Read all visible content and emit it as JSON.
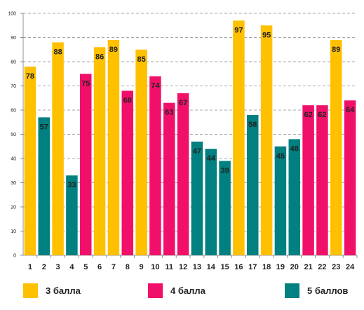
{
  "chart_data": {
    "type": "bar",
    "categories": [
      "1",
      "2",
      "3",
      "4",
      "5",
      "6",
      "7",
      "8",
      "9",
      "10",
      "11",
      "12",
      "13",
      "14",
      "15",
      "16",
      "17",
      "18",
      "19",
      "20",
      "21",
      "22",
      "23",
      "24"
    ],
    "values": [
      78,
      57,
      88,
      33,
      75,
      86,
      89,
      68,
      85,
      74,
      63,
      67,
      47,
      44,
      39,
      97,
      58,
      95,
      45,
      48,
      62,
      62,
      89,
      64
    ],
    "groups": [
      "3",
      "5",
      "3",
      "5",
      "4",
      "3",
      "3",
      "4",
      "3",
      "4",
      "4",
      "4",
      "5",
      "5",
      "5",
      "3",
      "5",
      "3",
      "5",
      "5",
      "4",
      "4",
      "3",
      "4"
    ],
    "legend": [
      {
        "key": "3",
        "label": "3 балла",
        "color": "#FFC000"
      },
      {
        "key": "4",
        "label": "4 балла",
        "color": "#F0106A"
      },
      {
        "key": "5",
        "label": "5 баллов",
        "color": "#008080"
      }
    ],
    "ylim": [
      0,
      100
    ],
    "yticks": [
      0,
      10,
      20,
      30,
      40,
      50,
      60,
      70,
      80,
      90,
      100
    ],
    "grid": true,
    "legend_position": "bottom"
  }
}
